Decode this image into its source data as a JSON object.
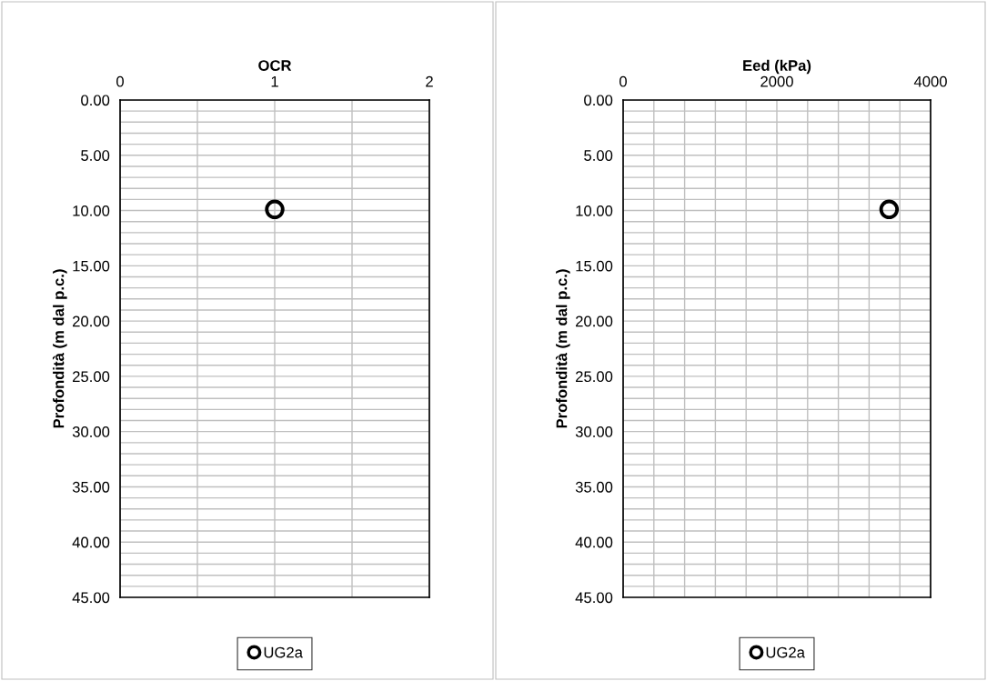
{
  "chart_data": [
    {
      "type": "scatter",
      "xlabel": "OCR",
      "ylabel": "Profondità (m dal p.c.)",
      "xlim": [
        0,
        2
      ],
      "xticks": [
        0,
        {
          "value": 0.5,
          "label": null
        },
        1,
        {
          "value": 1.5,
          "label": null
        },
        2
      ],
      "ylim": [
        45,
        0
      ],
      "yticks": [
        {
          "value": 0,
          "label": "0.00"
        },
        {
          "value": 1,
          "label": null
        },
        {
          "value": 2,
          "label": null
        },
        {
          "value": 3,
          "label": null
        },
        {
          "value": 4,
          "label": null
        },
        {
          "value": 5,
          "label": "5.00"
        },
        {
          "value": 6,
          "label": null
        },
        {
          "value": 7,
          "label": null
        },
        {
          "value": 8,
          "label": null
        },
        {
          "value": 9,
          "label": null
        },
        {
          "value": 10,
          "label": "10.00"
        },
        {
          "value": 11,
          "label": null
        },
        {
          "value": 12,
          "label": null
        },
        {
          "value": 13,
          "label": null
        },
        {
          "value": 14,
          "label": null
        },
        {
          "value": 15,
          "label": "15.00"
        },
        {
          "value": 16,
          "label": null
        },
        {
          "value": 17,
          "label": null
        },
        {
          "value": 18,
          "label": null
        },
        {
          "value": 19,
          "label": null
        },
        {
          "value": 20,
          "label": "20.00"
        },
        {
          "value": 21,
          "label": null
        },
        {
          "value": 22,
          "label": null
        },
        {
          "value": 23,
          "label": null
        },
        {
          "value": 24,
          "label": null
        },
        {
          "value": 25,
          "label": "25.00"
        },
        {
          "value": 26,
          "label": null
        },
        {
          "value": 27,
          "label": null
        },
        {
          "value": 28,
          "label": null
        },
        {
          "value": 29,
          "label": null
        },
        {
          "value": 30,
          "label": "30.00"
        },
        {
          "value": 31,
          "label": null
        },
        {
          "value": 32,
          "label": null
        },
        {
          "value": 33,
          "label": null
        },
        {
          "value": 34,
          "label": null
        },
        {
          "value": 35,
          "label": "35.00"
        },
        {
          "value": 36,
          "label": null
        },
        {
          "value": 37,
          "label": null
        },
        {
          "value": 38,
          "label": null
        },
        {
          "value": 39,
          "label": null
        },
        {
          "value": 40,
          "label": "40.00"
        },
        {
          "value": 41,
          "label": null
        },
        {
          "value": 42,
          "label": null
        },
        {
          "value": 43,
          "label": null
        },
        {
          "value": 44,
          "label": null
        },
        {
          "value": 45,
          "label": "45.00"
        }
      ],
      "grid": true,
      "legend": "bottom",
      "marker": "circle",
      "series": [
        {
          "name": "UG2a",
          "color": "#000000",
          "x": [
            1
          ],
          "values": [
            9.9
          ]
        }
      ]
    },
    {
      "type": "scatter",
      "xlabel": "Eed (kPa)",
      "ylabel": "Profondità (m dal p.c.)",
      "xlim": [
        0,
        4000
      ],
      "xticks": [
        0,
        {
          "value": 400,
          "label": null
        },
        {
          "value": 800,
          "label": null
        },
        {
          "value": 1200,
          "label": null
        },
        {
          "value": 1600,
          "label": null
        },
        2000,
        {
          "value": 2400,
          "label": null
        },
        {
          "value": 2800,
          "label": null
        },
        {
          "value": 3200,
          "label": null
        },
        {
          "value": 3600,
          "label": null
        },
        4000
      ],
      "ylim": [
        45,
        0
      ],
      "yticks": [
        {
          "value": 0,
          "label": "0.00"
        },
        {
          "value": 1,
          "label": null
        },
        {
          "value": 2,
          "label": null
        },
        {
          "value": 3,
          "label": null
        },
        {
          "value": 4,
          "label": null
        },
        {
          "value": 5,
          "label": "5.00"
        },
        {
          "value": 6,
          "label": null
        },
        {
          "value": 7,
          "label": null
        },
        {
          "value": 8,
          "label": null
        },
        {
          "value": 9,
          "label": null
        },
        {
          "value": 10,
          "label": "10.00"
        },
        {
          "value": 11,
          "label": null
        },
        {
          "value": 12,
          "label": null
        },
        {
          "value": 13,
          "label": null
        },
        {
          "value": 14,
          "label": null
        },
        {
          "value": 15,
          "label": "15.00"
        },
        {
          "value": 16,
          "label": null
        },
        {
          "value": 17,
          "label": null
        },
        {
          "value": 18,
          "label": null
        },
        {
          "value": 19,
          "label": null
        },
        {
          "value": 20,
          "label": "20.00"
        },
        {
          "value": 21,
          "label": null
        },
        {
          "value": 22,
          "label": null
        },
        {
          "value": 23,
          "label": null
        },
        {
          "value": 24,
          "label": null
        },
        {
          "value": 25,
          "label": "25.00"
        },
        {
          "value": 26,
          "label": null
        },
        {
          "value": 27,
          "label": null
        },
        {
          "value": 28,
          "label": null
        },
        {
          "value": 29,
          "label": null
        },
        {
          "value": 30,
          "label": "30.00"
        },
        {
          "value": 31,
          "label": null
        },
        {
          "value": 32,
          "label": null
        },
        {
          "value": 33,
          "label": null
        },
        {
          "value": 34,
          "label": null
        },
        {
          "value": 35,
          "label": "35.00"
        },
        {
          "value": 36,
          "label": null
        },
        {
          "value": 37,
          "label": null
        },
        {
          "value": 38,
          "label": null
        },
        {
          "value": 39,
          "label": null
        },
        {
          "value": 40,
          "label": "40.00"
        },
        {
          "value": 41,
          "label": null
        },
        {
          "value": 42,
          "label": null
        },
        {
          "value": 43,
          "label": null
        },
        {
          "value": 44,
          "label": null
        },
        {
          "value": 45,
          "label": "45.00"
        }
      ],
      "grid": true,
      "legend": "bottom",
      "marker": "circle",
      "series": [
        {
          "name": "UG2a",
          "color": "#000000",
          "x": [
            3460
          ],
          "values": [
            9.9
          ]
        }
      ]
    }
  ]
}
